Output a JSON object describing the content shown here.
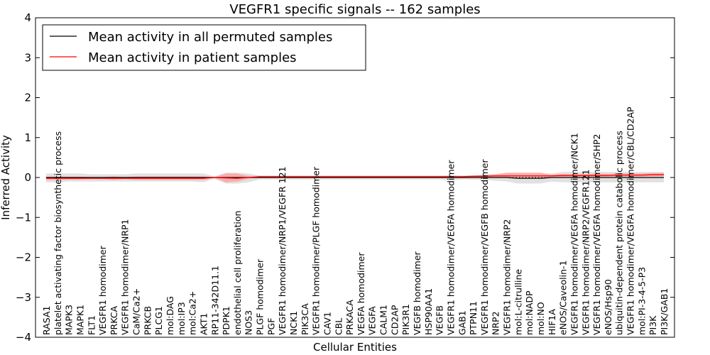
{
  "chart_data": {
    "type": "line",
    "title": "VEGFR1 specific signals -- 162 samples",
    "xlabel": "Cellular Entities",
    "ylabel": "Inferred Activity",
    "ylim": [
      -4,
      4
    ],
    "yticks": [
      "-4",
      "-3",
      "-2",
      "-1",
      "0",
      "1",
      "2",
      "3",
      "4"
    ],
    "legend_position": "top-left",
    "categories": [
      "RASA1",
      "platelet activating factor biosynthetic process",
      "MAPK3",
      "MAPK1",
      "FLT1",
      "VEGFR1 homodimer",
      "PRKCA",
      "VEGFR1 homodimer/NRP1",
      "CaM/Ca2+",
      "PRKCB",
      "PLCG1",
      "mol:DAG",
      "mol:IP3",
      "mol:Ca2+",
      "AKT1",
      "RP11-342D11.1",
      "PDPK1",
      "endothelial cell proliferation",
      "NOS3",
      "PLGF homodimer",
      "PGF",
      "VEGFR1 homodimer/NRP1/VEGFR 121",
      "NCK1",
      "PIK3CA",
      "VEGFR1 homodimer/PLGF homodimer",
      "CAV1",
      "CBL",
      "PRKACA",
      "VEGFA homodimer",
      "VEGFA",
      "CALM1",
      "CD2AP",
      "PIK3R1",
      "VEGFB homodimer",
      "HSP90AA1",
      "VEGFB",
      "VEGFR1 homodimer/VEGFA homodimer",
      "GAB1",
      "PTPN11",
      "VEGFR1 homodimer/VEGFB homodimer",
      "NRP2",
      "VEGFR1 homodimer/NRP2",
      "mol:L-citrulline",
      "mol:NADP",
      "mol:NO",
      "HIF1A",
      "eNOS/Caveolin-1",
      "VEGFR1 homodimer/VEGFA homodimer/NCK1",
      "VEGFR1 homodimer/NRP2/VEGFR121",
      "VEGFR1 homodimer/VEGFA homodimer/SHP2",
      "eNOS/Hsp90",
      "ubiquitin-dependent protein catabolic process",
      "VEGFR1 homodimer/VEGFA homodimer/CBL/CD2AP",
      "mol:PI-3-4-5-P3",
      "PI3K",
      "PI3K/GAB1"
    ],
    "series": [
      {
        "name": "Mean activity in all permuted samples",
        "color": "#000000",
        "values": [
          0,
          0,
          0,
          0,
          0,
          0,
          0,
          0,
          0,
          0,
          0,
          0,
          0,
          0,
          0,
          0,
          0,
          0,
          0,
          0,
          0,
          0,
          0,
          0,
          0,
          0,
          0,
          0,
          0,
          0,
          0,
          0,
          0,
          0,
          0,
          0,
          0,
          0,
          0,
          0,
          0,
          0,
          -0.02,
          -0.02,
          -0.02,
          0,
          0,
          0,
          0,
          0,
          0,
          0,
          0,
          0,
          0,
          0
        ],
        "band_low": [
          -0.12,
          -0.12,
          -0.1,
          -0.1,
          -0.1,
          -0.1,
          -0.1,
          -0.1,
          -0.1,
          -0.1,
          -0.1,
          -0.1,
          -0.1,
          -0.1,
          -0.12,
          -0.03,
          -0.15,
          -0.15,
          -0.12,
          -0.05,
          -0.05,
          -0.05,
          -0.05,
          -0.05,
          -0.05,
          -0.05,
          -0.05,
          -0.05,
          -0.05,
          -0.05,
          -0.05,
          -0.05,
          -0.05,
          -0.05,
          -0.05,
          -0.05,
          -0.08,
          -0.05,
          -0.05,
          -0.06,
          -0.08,
          -0.1,
          -0.15,
          -0.15,
          -0.15,
          -0.1,
          -0.12,
          -0.12,
          -0.12,
          -0.12,
          -0.12,
          -0.12,
          -0.12,
          -0.12,
          -0.12,
          -0.12
        ],
        "band_high": [
          0.1,
          0.1,
          0.1,
          0.1,
          0.08,
          0.08,
          0.08,
          0.08,
          0.1,
          0.1,
          0.1,
          0.1,
          0.1,
          0.1,
          0.1,
          0.03,
          0.12,
          0.12,
          0.1,
          0.05,
          0.05,
          0.05,
          0.05,
          0.05,
          0.05,
          0.05,
          0.05,
          0.05,
          0.05,
          0.05,
          0.05,
          0.05,
          0.05,
          0.05,
          0.05,
          0.05,
          0.06,
          0.05,
          0.05,
          0.08,
          0.08,
          0.1,
          0.1,
          0.1,
          0.1,
          0.1,
          0.14,
          0.14,
          0.14,
          0.14,
          0.14,
          0.14,
          0.14,
          0.14,
          0.14,
          0.14
        ]
      },
      {
        "name": "Mean activity in patient samples",
        "color": "#ff0000",
        "values": [
          -0.02,
          -0.02,
          -0.02,
          -0.02,
          -0.02,
          -0.02,
          -0.02,
          -0.02,
          -0.02,
          -0.02,
          -0.02,
          -0.02,
          -0.02,
          -0.02,
          -0.02,
          0,
          -0.01,
          -0.02,
          0,
          0.02,
          0.02,
          0.02,
          0.02,
          0.02,
          0.02,
          0.02,
          0.02,
          0.02,
          0.02,
          0.02,
          0.02,
          0.02,
          0.02,
          0.02,
          0.02,
          0.02,
          0.02,
          0.02,
          0.03,
          0.03,
          0.04,
          0.04,
          0.04,
          0.04,
          0.04,
          0.04,
          0.05,
          0.05,
          0.05,
          0.05,
          0.05,
          0.06,
          0.06,
          0.06,
          0.07,
          0.07
        ],
        "band_low": [
          -0.06,
          -0.06,
          -0.05,
          -0.05,
          -0.04,
          -0.04,
          -0.06,
          -0.04,
          -0.06,
          -0.06,
          -0.06,
          -0.06,
          -0.06,
          -0.06,
          -0.06,
          -0.01,
          -0.12,
          -0.1,
          -0.03,
          0,
          0,
          0,
          0,
          0,
          0,
          0,
          0,
          0,
          0,
          0,
          0,
          0,
          0,
          0,
          0,
          0,
          0,
          0,
          0.01,
          0.01,
          0.01,
          0,
          0,
          0,
          0,
          0.01,
          0.01,
          0.01,
          0.01,
          0.01,
          0.02,
          0.02,
          0.02,
          0.02,
          0.03,
          0.03
        ],
        "band_high": [
          0.02,
          0.02,
          0.02,
          0.02,
          0.01,
          0.01,
          0.03,
          0.01,
          0.03,
          0.03,
          0.03,
          0.03,
          0.03,
          0.03,
          0.03,
          0.01,
          0.1,
          0.1,
          0.04,
          0.04,
          0.04,
          0.04,
          0.04,
          0.04,
          0.04,
          0.04,
          0.04,
          0.04,
          0.04,
          0.04,
          0.04,
          0.04,
          0.04,
          0.04,
          0.04,
          0.04,
          0.04,
          0.04,
          0.05,
          0.06,
          0.08,
          0.12,
          0.12,
          0.12,
          0.12,
          0.07,
          0.09,
          0.08,
          0.08,
          0.1,
          0.09,
          0.1,
          0.1,
          0.1,
          0.11,
          0.11
        ]
      }
    ],
    "band_colors": {
      "permuted": "#d9d9d9",
      "patient": "#ff9a9a"
    }
  }
}
